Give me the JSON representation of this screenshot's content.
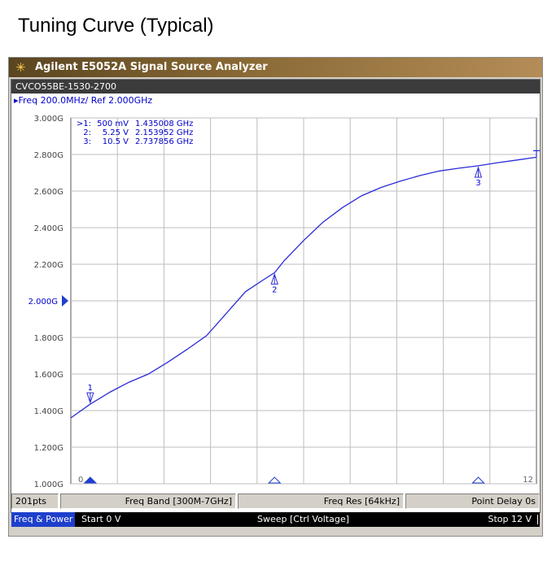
{
  "page": {
    "title": "Tuning Curve (Typical)"
  },
  "window": {
    "title": "Agilent E5052A Signal Source Analyzer",
    "icon": "agilent-starburst-icon"
  },
  "trace": {
    "title": "CVCO55BE-1530-2700",
    "scale": "▸Freq 200.0MHz/ Ref 2.000GHz"
  },
  "markers": {
    "readout": [
      {
        "id": ">1:",
        "voltage": "500 mV",
        "freq": "1.435008 GHz"
      },
      {
        "id": "2:",
        "voltage": "5.25 V",
        "freq": "2.153952 GHz"
      },
      {
        "id": "3:",
        "voltage": "10.5 V",
        "freq": "2.737856 GHz"
      }
    ]
  },
  "softkeys": {
    "points": "201pts",
    "band": "Freq Band [300M-7GHz]",
    "res": "Freq Res [64kHz]",
    "delay": "Point Delay 0s"
  },
  "status": {
    "mode": "Freq & Power",
    "start": "Start 0 V",
    "sweep": "Sweep [Ctrl Voltage]",
    "stop": "Stop 12 V"
  },
  "colors": {
    "trace": "#2b2bd6",
    "marker_text": "#0000cc",
    "grid": "#bdbdbd",
    "frame": "#555555"
  },
  "chart_data": {
    "type": "line",
    "title": "Tuning Curve (Typical)",
    "subtitle": "CVCO55BE-1530-2700",
    "xlabel": "",
    "ylabel": "",
    "x_unit": "V",
    "y_unit": "GHz",
    "xlim": [
      0,
      12
    ],
    "ylim": [
      1.0,
      3.0
    ],
    "x_tick_labels": [
      "0",
      "12"
    ],
    "y_ticks": [
      1.0,
      1.2,
      1.4,
      1.6,
      1.8,
      2.0,
      2.2,
      2.4,
      2.6,
      2.8,
      3.0
    ],
    "y_tick_labels": [
      "1.000G",
      "1.200G",
      "1.400G",
      "1.600G",
      "1.800G",
      "2.000G",
      "2.200G",
      "2.400G",
      "2.600G",
      "2.800G",
      "3.000G"
    ],
    "reference_level": 2.0,
    "grid": true,
    "series": [
      {
        "x": [
          0,
          0.5,
          1.0,
          1.5,
          2.0,
          2.5,
          3.0,
          3.5,
          4.0,
          4.5,
          5.0,
          5.25,
          5.5,
          6.0,
          6.5,
          7.0,
          7.5,
          8.0,
          8.5,
          9.0,
          9.5,
          10.0,
          10.5,
          11.0,
          11.5,
          12.0
        ],
        "y": [
          1.36,
          1.435,
          1.5,
          1.555,
          1.6,
          1.665,
          1.735,
          1.81,
          1.93,
          2.05,
          2.12,
          2.154,
          2.22,
          2.33,
          2.43,
          2.51,
          2.575,
          2.62,
          2.655,
          2.685,
          2.71,
          2.725,
          2.738,
          2.755,
          2.77,
          2.785
        ]
      }
    ],
    "markers": [
      {
        "label": "1",
        "x": 0.5,
        "y": 1.435,
        "ref": false
      },
      {
        "label": "2",
        "x": 5.25,
        "y": 2.154,
        "ref": false
      },
      {
        "label": "3",
        "x": 10.5,
        "y": 2.738,
        "ref": false
      },
      {
        "label": "",
        "x": 12.0,
        "y": 2.785,
        "ref": true
      }
    ],
    "x_axis_markers": [
      {
        "x": 0.5,
        "active": true
      },
      {
        "x": 5.25,
        "active": false
      },
      {
        "x": 10.5,
        "active": false
      }
    ]
  }
}
